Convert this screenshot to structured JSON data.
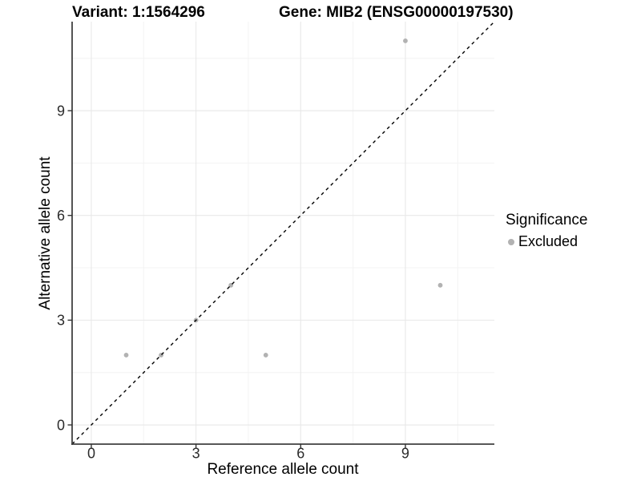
{
  "chart_data": {
    "type": "scatter",
    "title_left": "Variant: 1:1564296",
    "title_right": "Gene: MIB2 (ENSG00000197530)",
    "xlabel": "Reference allele count",
    "ylabel": "Alternative allele count",
    "xlim": [
      -0.55,
      11.55
    ],
    "ylim": [
      -0.55,
      11.55
    ],
    "x_ticks": [
      0,
      3,
      6,
      9
    ],
    "y_ticks": [
      0,
      3,
      6,
      9
    ],
    "x_minor_ticks": [
      1.5,
      4.5,
      7.5,
      10.5
    ],
    "y_minor_ticks": [
      1.5,
      4.5,
      7.5,
      10.5
    ],
    "grid": true,
    "identity_line": {
      "style": "dashed",
      "color": "#000000",
      "from": [
        -0.55,
        -0.55
      ],
      "to": [
        11.55,
        11.55
      ]
    },
    "series": [
      {
        "name": "Excluded",
        "color": "#b2b2b2",
        "points": [
          [
            1,
            2
          ],
          [
            2,
            2
          ],
          [
            3,
            3
          ],
          [
            4,
            4
          ],
          [
            5,
            2
          ],
          [
            9,
            11
          ],
          [
            10,
            4
          ]
        ]
      }
    ],
    "legend": {
      "title": "Significance",
      "position": "right",
      "items": [
        {
          "label": "Excluded",
          "color": "#b2b2b2"
        }
      ]
    },
    "colors": {
      "background": "#ffffff",
      "major_grid": "#e8e8e8",
      "minor_grid": "#f3f3f3",
      "axis_line": "#404040",
      "tick_mark": "#333333",
      "tick_label": "#2b2b2b"
    }
  }
}
